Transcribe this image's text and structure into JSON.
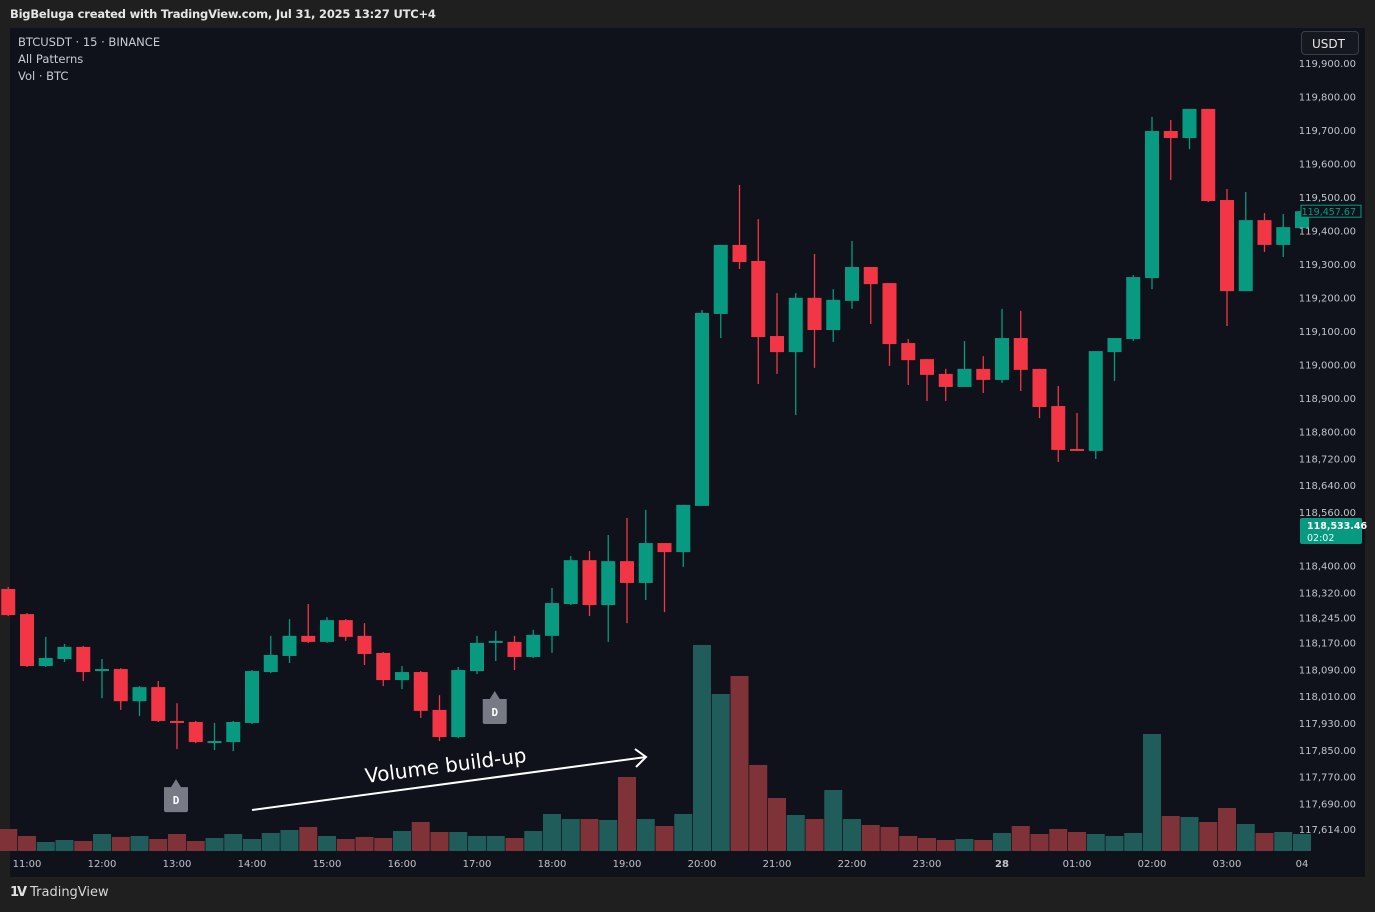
{
  "header": {
    "attribution": "BigBeluga created with TradingView.com, Jul 31, 2025 13:27 UTC+4"
  },
  "legend": {
    "symbol": "BTCUSDT · 15 · BINANCE",
    "indicator": "All Patterns",
    "volume": "Vol · BTC"
  },
  "currency_button": "USDT",
  "footer": {
    "brand": "TradingView"
  },
  "colors": {
    "up": "#089981",
    "down": "#f23645",
    "vol_up": "#1f5c5a",
    "vol_down": "#7f3237",
    "marker": "#787b86"
  },
  "chart_data": {
    "type": "candlestick",
    "symbol": "BTCUSDT",
    "interval_minutes": 15,
    "start_time": "10:45",
    "ylim": [
      117600,
      119920
    ],
    "y_tick_labels": [
      "119,900.00",
      "119,800.00",
      "119,700.00",
      "119,600.00",
      "119,500.00",
      "119,400.00",
      "119,300.00",
      "119,200.00",
      "119,100.00",
      "119,000.00",
      "118,900.00",
      "118,800.00",
      "118,720.00",
      "118,640.00",
      "118,560.00",
      "118,400.00",
      "118,320.00",
      "118,245.00",
      "118,170.00",
      "118,090.00",
      "118,010.00",
      "117,930.00",
      "117,850.00",
      "117,770.00",
      "117,690.00",
      "117,614.00"
    ],
    "y_tick_values": [
      119900,
      119800,
      119700,
      119600,
      119500,
      119400,
      119300,
      119200,
      119100,
      119000,
      118900,
      118800,
      118720,
      118640,
      118560,
      118400,
      118320,
      118245,
      118170,
      118090,
      118010,
      117930,
      117850,
      117770,
      117690,
      117614
    ],
    "x_tick_labels": [
      "11:00",
      "12:00",
      "13:00",
      "14:00",
      "15:00",
      "16:00",
      "17:00",
      "18:00",
      "19:00",
      "20:00",
      "21:00",
      "22:00",
      "23:00",
      "28",
      "01:00",
      "02:00",
      "03:00",
      "04"
    ],
    "candle_fields": [
      "open",
      "high",
      "low",
      "close",
      "volume"
    ],
    "candles": [
      [
        118330,
        118336,
        118249,
        118252,
        22
      ],
      [
        118255,
        118258,
        118097,
        118100,
        15
      ],
      [
        118100,
        118187,
        118097,
        118124,
        9
      ],
      [
        118121,
        118166,
        118112,
        118157,
        11
      ],
      [
        118157,
        118160,
        118055,
        118082,
        10
      ],
      [
        118085,
        118121,
        118004,
        118091,
        17
      ],
      [
        118091,
        118094,
        117969,
        117995,
        14
      ],
      [
        117995,
        118040,
        117951,
        118037,
        15
      ],
      [
        118037,
        118055,
        117933,
        117936,
        12
      ],
      [
        117936,
        117989,
        117852,
        117933,
        17
      ],
      [
        117933,
        117936,
        117870,
        117873,
        10
      ],
      [
        117873,
        117930,
        117849,
        117876,
        13
      ],
      [
        117873,
        117936,
        117846,
        117933,
        17
      ],
      [
        117930,
        118088,
        117927,
        118085,
        12
      ],
      [
        118082,
        118190,
        118079,
        118133,
        18
      ],
      [
        118130,
        118240,
        118109,
        118190,
        21
      ],
      [
        118190,
        118285,
        118169,
        118172,
        24
      ],
      [
        118172,
        118246,
        118169,
        118237,
        15
      ],
      [
        118237,
        118240,
        118175,
        118187,
        12
      ],
      [
        118190,
        118228,
        118103,
        118136,
        14
      ],
      [
        118139,
        118142,
        118040,
        118058,
        13
      ],
      [
        118058,
        118100,
        118031,
        118082,
        20
      ],
      [
        118082,
        118085,
        117945,
        117966,
        29
      ],
      [
        117969,
        118013,
        117876,
        117888,
        19
      ],
      [
        117888,
        118097,
        117885,
        118088,
        19
      ],
      [
        118085,
        118190,
        118076,
        118169,
        15
      ],
      [
        118169,
        118205,
        118115,
        118175,
        15
      ],
      [
        118172,
        118190,
        118088,
        118127,
        13
      ],
      [
        118127,
        118208,
        118124,
        118193,
        20
      ],
      [
        118190,
        118333,
        118139,
        118288,
        37
      ],
      [
        118285,
        118428,
        118282,
        118416,
        32
      ],
      [
        118416,
        118443,
        118249,
        118282,
        32
      ],
      [
        118282,
        118491,
        118172,
        118413,
        31
      ],
      [
        118413,
        118542,
        118228,
        118348,
        74
      ],
      [
        118348,
        118566,
        118297,
        118467,
        32
      ],
      [
        118467,
        118467,
        118261,
        118440,
        25
      ],
      [
        118440,
        118581,
        118396,
        118581,
        37
      ],
      [
        118578,
        119163,
        118578,
        119154,
        206
      ],
      [
        119151,
        119357,
        119079,
        119357,
        157
      ],
      [
        119357,
        119536,
        119285,
        119306,
        175
      ],
      [
        119309,
        119434,
        118942,
        119082,
        86
      ],
      [
        119085,
        119213,
        118972,
        119037,
        53
      ],
      [
        119037,
        119213,
        118849,
        119199,
        36
      ],
      [
        119199,
        119330,
        118990,
        119103,
        32
      ],
      [
        119103,
        119225,
        119067,
        119193,
        61
      ],
      [
        119190,
        119369,
        119166,
        119291,
        32
      ],
      [
        119291,
        119291,
        119121,
        119240,
        26
      ],
      [
        119243,
        119243,
        118996,
        119061,
        24
      ],
      [
        119064,
        119076,
        118939,
        119013,
        15
      ],
      [
        119016,
        119016,
        118891,
        118969,
        13
      ],
      [
        118972,
        118987,
        118891,
        118933,
        11
      ],
      [
        118933,
        119070,
        118933,
        118987,
        12
      ],
      [
        118987,
        119025,
        118915,
        118954,
        11
      ],
      [
        118954,
        119166,
        118945,
        119079,
        18
      ],
      [
        119079,
        119160,
        118921,
        118984,
        25
      ],
      [
        118987,
        118987,
        118840,
        118873,
        17
      ],
      [
        118876,
        118936,
        118709,
        118745,
        22
      ],
      [
        118748,
        118855,
        118742,
        118742,
        19
      ],
      [
        118742,
        119040,
        118718,
        119040,
        17
      ],
      [
        119037,
        119079,
        118951,
        119079,
        15
      ],
      [
        119076,
        119267,
        119070,
        119261,
        18
      ],
      [
        119258,
        119739,
        119225,
        119697,
        117
      ],
      [
        119697,
        119730,
        119551,
        119676,
        35
      ],
      [
        119676,
        119763,
        119643,
        119763,
        34
      ],
      [
        119763,
        119763,
        119485,
        119488,
        29
      ],
      [
        119491,
        119524,
        119115,
        119219,
        43
      ],
      [
        119219,
        119515,
        119219,
        119431,
        27
      ],
      [
        119431,
        119452,
        119336,
        119357,
        18
      ],
      [
        119357,
        119449,
        119321,
        119410,
        19
      ],
      [
        119407,
        119458,
        119407,
        119457.67,
        17
      ]
    ],
    "last_price_label": "119,457.67",
    "price_tag": {
      "price": "118,533.46",
      "countdown": "02:02",
      "value": 118533.46
    },
    "pattern_markers": [
      {
        "label": "D",
        "candle_index": 9
      },
      {
        "label": "D",
        "candle_index": 26
      }
    ],
    "annotation": {
      "text": "Volume build-up",
      "from_candle": 13,
      "to_candle": 34
    }
  }
}
